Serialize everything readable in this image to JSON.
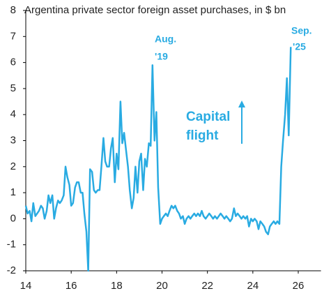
{
  "chart_data": {
    "type": "line",
    "title": "Argentina private sector foreign asset purchases, in $ bn",
    "annotations": [
      {
        "text": [
          "Aug.",
          "'19"
        ]
      },
      {
        "text": [
          "Sep.",
          "'25"
        ]
      },
      {
        "text": [
          "Capital",
          "flight"
        ]
      }
    ],
    "color": "#29abe2",
    "x": [
      14.0,
      14.08,
      14.17,
      14.25,
      14.33,
      14.42,
      14.5,
      14.58,
      14.67,
      14.75,
      14.83,
      14.92,
      15.0,
      15.08,
      15.17,
      15.25,
      15.33,
      15.42,
      15.5,
      15.58,
      15.67,
      15.75,
      15.83,
      15.92,
      16.0,
      16.08,
      16.17,
      16.25,
      16.33,
      16.42,
      16.5,
      16.58,
      16.67,
      16.75,
      16.83,
      16.92,
      17.0,
      17.08,
      17.17,
      17.25,
      17.33,
      17.42,
      17.5,
      17.58,
      17.67,
      17.75,
      17.83,
      17.92,
      18.0,
      18.08,
      18.17,
      18.25,
      18.33,
      18.42,
      18.5,
      18.58,
      18.67,
      18.75,
      18.83,
      18.92,
      19.0,
      19.08,
      19.17,
      19.25,
      19.33,
      19.42,
      19.5,
      19.58,
      19.67,
      19.75,
      19.83,
      19.92,
      20.0,
      20.08,
      20.17,
      20.25,
      20.33,
      20.42,
      20.5,
      20.58,
      20.67,
      20.75,
      20.83,
      20.92,
      21.0,
      21.08,
      21.17,
      21.25,
      21.33,
      21.42,
      21.5,
      21.58,
      21.67,
      21.75,
      21.83,
      21.92,
      22.0,
      22.08,
      22.17,
      22.25,
      22.33,
      22.42,
      22.5,
      22.58,
      22.67,
      22.75,
      22.83,
      22.92,
      23.0,
      23.08,
      23.17,
      23.25,
      23.33,
      23.42,
      23.5,
      23.58,
      23.67,
      23.75,
      23.83,
      23.92,
      24.0,
      24.08,
      24.17,
      24.25,
      24.33,
      24.42,
      24.5,
      24.58,
      24.67,
      24.75,
      24.83,
      24.92,
      25.0,
      25.08,
      25.17,
      25.25,
      25.33,
      25.42,
      25.5,
      25.58,
      25.67
    ],
    "values": [
      0.5,
      0.2,
      0.3,
      -0.1,
      0.6,
      0.1,
      0.2,
      0.3,
      0.5,
      0.4,
      0.0,
      0.3,
      0.9,
      0.6,
      0.9,
      0.0,
      0.4,
      0.7,
      0.6,
      0.7,
      0.9,
      2.0,
      1.6,
      1.3,
      0.5,
      0.6,
      1.2,
      1.4,
      1.4,
      1.0,
      1.0,
      0.2,
      -0.5,
      -2.0,
      1.9,
      1.8,
      1.1,
      1.0,
      1.1,
      1.1,
      2.0,
      3.1,
      2.2,
      2.0,
      2.0,
      2.7,
      3.1,
      1.4,
      2.5,
      1.9,
      4.5,
      2.9,
      3.3,
      2.6,
      2.0,
      1.1,
      0.4,
      0.8,
      2.0,
      1.0,
      2.2,
      2.5,
      1.1,
      2.3,
      2.0,
      2.9,
      2.8,
      5.9,
      3.0,
      4.1,
      1.2,
      -0.2,
      0.0,
      0.1,
      0.2,
      0.1,
      0.3,
      0.5,
      0.4,
      0.5,
      0.3,
      0.2,
      0.0,
      0.1,
      -0.2,
      0.0,
      0.1,
      0.0,
      0.1,
      0.2,
      0.1,
      0.2,
      0.1,
      0.3,
      0.1,
      0.0,
      0.1,
      0.2,
      0.1,
      0.0,
      0.1,
      0.0,
      0.1,
      0.2,
      0.1,
      0.0,
      0.1,
      0.0,
      -0.1,
      0.0,
      0.4,
      0.1,
      0.2,
      0.1,
      0.0,
      0.1,
      0.0,
      0.1,
      -0.3,
      0.0,
      -0.1,
      0.0,
      -0.1,
      -0.4,
      -0.1,
      -0.2,
      -0.3,
      -0.5,
      -0.6,
      -0.3,
      -0.2,
      -0.1,
      -0.2,
      -0.1,
      -0.2,
      2.0,
      3.0,
      4.0,
      5.4,
      3.2,
      6.6
    ],
    "xlim": [
      14,
      27
    ],
    "ylim": [
      -2,
      8
    ],
    "xticks": [
      14,
      16,
      18,
      20,
      22,
      24,
      26
    ],
    "yticks": [
      -2,
      -1,
      0,
      1,
      2,
      3,
      4,
      5,
      6,
      7,
      8
    ]
  }
}
